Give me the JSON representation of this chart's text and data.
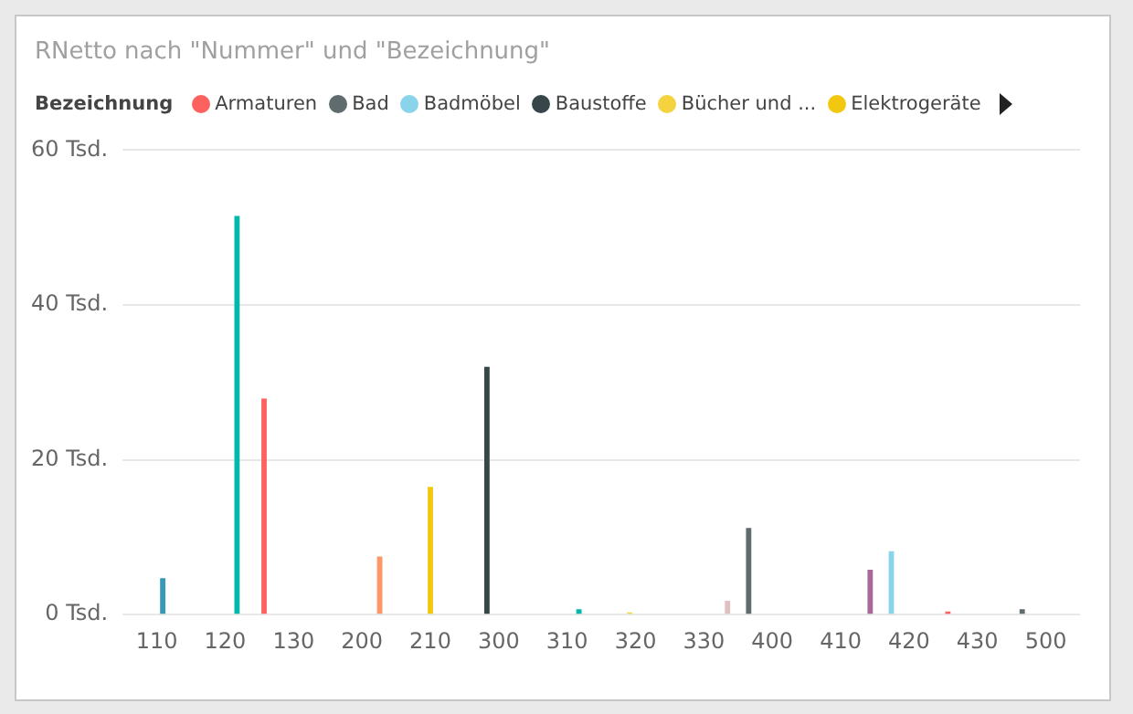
{
  "chart_data": {
    "type": "bar",
    "title": "RNetto nach \"Nummer\" und \"Bezeichnung\"",
    "legend_title": "Bezeichnung",
    "legend": "top",
    "grid": "y",
    "categories": [
      "110",
      "120",
      "130",
      "200",
      "210",
      "300",
      "310",
      "320",
      "330",
      "400",
      "410",
      "420",
      "430",
      "500"
    ],
    "ylim": [
      0,
      60
    ],
    "yticks": [
      {
        "value": 0,
        "label": "0 Tsd."
      },
      {
        "value": 20,
        "label": "20 Tsd."
      },
      {
        "value": 40,
        "label": "40 Tsd."
      },
      {
        "value": 60,
        "label": "60 Tsd."
      }
    ],
    "series": [
      {
        "name": "Armaturen",
        "color": "#fd625e",
        "values": [
          null,
          null,
          27.9,
          null,
          null,
          null,
          null,
          null,
          null,
          null,
          null,
          null,
          0.4,
          null
        ]
      },
      {
        "name": "Bad",
        "color": "#5f6b6d",
        "values": [
          null,
          null,
          null,
          null,
          null,
          null,
          null,
          null,
          null,
          11.2,
          null,
          null,
          null,
          0.7
        ]
      },
      {
        "name": "Badmöbel",
        "color": "#8ad4eb",
        "values": [
          null,
          null,
          null,
          null,
          null,
          null,
          null,
          null,
          null,
          null,
          null,
          8.2,
          null,
          null
        ]
      },
      {
        "name": "Baustoffe",
        "color": "#374649",
        "values": [
          null,
          null,
          null,
          null,
          null,
          32.0,
          null,
          null,
          null,
          null,
          null,
          null,
          null,
          null
        ]
      },
      {
        "name": "Bücher und ...",
        "color": "#f5d33f",
        "values": [
          null,
          null,
          null,
          null,
          null,
          null,
          null,
          0.3,
          null,
          null,
          null,
          null,
          null,
          null
        ]
      },
      {
        "name": "Elektrogeräte",
        "color": "#f2c80f",
        "values": [
          null,
          null,
          null,
          null,
          16.5,
          null,
          null,
          null,
          null,
          null,
          null,
          null,
          null,
          null
        ]
      },
      {
        "color": "#3599b8",
        "values": [
          4.7,
          null,
          null,
          null,
          null,
          null,
          null,
          null,
          null,
          null,
          null,
          null,
          null,
          null
        ]
      },
      {
        "color": "#01b8aa",
        "values": [
          null,
          51.5,
          null,
          null,
          null,
          null,
          0.7,
          null,
          null,
          null,
          null,
          null,
          null,
          null
        ]
      },
      {
        "color": "#fe9666",
        "values": [
          null,
          null,
          null,
          7.5,
          null,
          null,
          null,
          null,
          null,
          null,
          null,
          null,
          null,
          null
        ]
      },
      {
        "color": "#dfbfbf",
        "values": [
          null,
          null,
          null,
          null,
          null,
          null,
          null,
          null,
          1.8,
          null,
          null,
          null,
          null,
          null
        ]
      },
      {
        "color": "#a66999",
        "values": [
          null,
          null,
          null,
          null,
          null,
          null,
          null,
          null,
          null,
          null,
          5.8,
          null,
          null,
          null
        ]
      }
    ]
  }
}
